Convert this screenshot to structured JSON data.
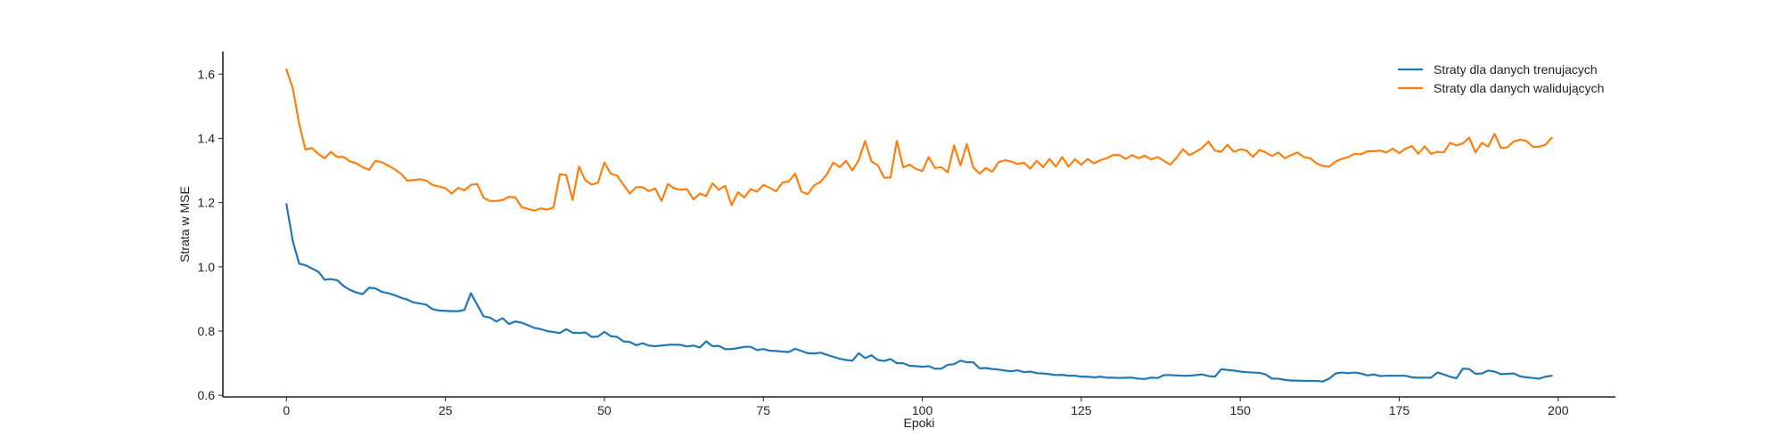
{
  "chart_data": {
    "type": "line",
    "title": "",
    "xlabel": "Epoki",
    "ylabel": "Strata w MSE",
    "xlim": [
      -10,
      209
    ],
    "ylim": [
      0.595,
      1.67
    ],
    "xticks": [
      0,
      25,
      50,
      75,
      100,
      125,
      150,
      175,
      200
    ],
    "yticks": [
      0.6,
      0.8,
      1.0,
      1.2,
      1.4,
      1.6
    ],
    "ytick_labels": [
      "0.6",
      "0.8",
      "1.0",
      "1.2",
      "1.4",
      "1.6"
    ],
    "grid": false,
    "legend_position": "top-right",
    "x": [
      0,
      1,
      2,
      3,
      4,
      5,
      6,
      7,
      8,
      9,
      10,
      11,
      12,
      13,
      14,
      15,
      16,
      17,
      18,
      19,
      20,
      21,
      22,
      23,
      24,
      25,
      26,
      27,
      28,
      29,
      30,
      31,
      32,
      33,
      34,
      35,
      36,
      37,
      38,
      39,
      40,
      41,
      42,
      43,
      44,
      45,
      46,
      47,
      48,
      49,
      50,
      51,
      52,
      53,
      54,
      55,
      56,
      57,
      58,
      59,
      60,
      61,
      62,
      63,
      64,
      65,
      66,
      67,
      68,
      69,
      70,
      71,
      72,
      73,
      74,
      75,
      76,
      77,
      78,
      79,
      80,
      81,
      82,
      83,
      84,
      85,
      86,
      87,
      88,
      89,
      90,
      91,
      92,
      93,
      94,
      95,
      96,
      97,
      98,
      99,
      100,
      101,
      102,
      103,
      104,
      105,
      106,
      107,
      108,
      109,
      110,
      111,
      112,
      113,
      114,
      115,
      116,
      117,
      118,
      119,
      120,
      121,
      122,
      123,
      124,
      125,
      126,
      127,
      128,
      129,
      130,
      131,
      132,
      133,
      134,
      135,
      136,
      137,
      138,
      139,
      140,
      141,
      142,
      143,
      144,
      145,
      146,
      147,
      148,
      149,
      150,
      151,
      152,
      153,
      154,
      155,
      156,
      157,
      158,
      159,
      160,
      161,
      162,
      163,
      164,
      165,
      166,
      167,
      168,
      169,
      170,
      171,
      172,
      173,
      174,
      175,
      176,
      177,
      178,
      179,
      180,
      181,
      182,
      183,
      184,
      185,
      186,
      187,
      188,
      189,
      190,
      191,
      192,
      193,
      194,
      195,
      196,
      197,
      198,
      199
    ],
    "series": [
      {
        "name": "Straty dla danych trenujacych",
        "color": "#1f77b4",
        "values": [
          1.195,
          1.08,
          1.01,
          1.005,
          0.995,
          0.985,
          0.96,
          0.962,
          0.958,
          0.94,
          0.928,
          0.92,
          0.915,
          0.935,
          0.933,
          0.922,
          0.918,
          0.912,
          0.904,
          0.898,
          0.889,
          0.886,
          0.882,
          0.868,
          0.864,
          0.863,
          0.862,
          0.862,
          0.866,
          0.918,
          0.882,
          0.846,
          0.842,
          0.83,
          0.84,
          0.822,
          0.83,
          0.826,
          0.818,
          0.81,
          0.806,
          0.8,
          0.797,
          0.794,
          0.806,
          0.795,
          0.794,
          0.796,
          0.782,
          0.783,
          0.798,
          0.784,
          0.782,
          0.768,
          0.766,
          0.756,
          0.762,
          0.755,
          0.753,
          0.755,
          0.757,
          0.758,
          0.757,
          0.752,
          0.755,
          0.749,
          0.768,
          0.753,
          0.754,
          0.744,
          0.744,
          0.747,
          0.751,
          0.751,
          0.741,
          0.744,
          0.739,
          0.738,
          0.736,
          0.735,
          0.745,
          0.738,
          0.731,
          0.73,
          0.733,
          0.726,
          0.72,
          0.714,
          0.71,
          0.708,
          0.731,
          0.716,
          0.725,
          0.71,
          0.707,
          0.713,
          0.7,
          0.7,
          0.692,
          0.691,
          0.689,
          0.691,
          0.683,
          0.683,
          0.695,
          0.697,
          0.708,
          0.703,
          0.703,
          0.684,
          0.685,
          0.682,
          0.68,
          0.677,
          0.675,
          0.678,
          0.672,
          0.674,
          0.669,
          0.668,
          0.666,
          0.663,
          0.664,
          0.661,
          0.661,
          0.658,
          0.658,
          0.656,
          0.658,
          0.655,
          0.655,
          0.654,
          0.655,
          0.655,
          0.652,
          0.651,
          0.655,
          0.654,
          0.663,
          0.663,
          0.662,
          0.661,
          0.661,
          0.663,
          0.665,
          0.66,
          0.658,
          0.681,
          0.679,
          0.677,
          0.674,
          0.672,
          0.671,
          0.67,
          0.665,
          0.652,
          0.652,
          0.648,
          0.646,
          0.646,
          0.645,
          0.645,
          0.645,
          0.643,
          0.652,
          0.668,
          0.671,
          0.669,
          0.671,
          0.668,
          0.662,
          0.665,
          0.66,
          0.661,
          0.661,
          0.661,
          0.661,
          0.656,
          0.655,
          0.655,
          0.655,
          0.671,
          0.665,
          0.658,
          0.653,
          0.683,
          0.682,
          0.667,
          0.668,
          0.677,
          0.674,
          0.666,
          0.667,
          0.668,
          0.659,
          0.656,
          0.654,
          0.652,
          0.658,
          0.661
        ]
      },
      {
        "name": "Straty dla danych walidujących",
        "color": "#ff7f0e",
        "values": [
          1.615,
          1.555,
          1.445,
          1.365,
          1.37,
          1.352,
          1.338,
          1.358,
          1.342,
          1.342,
          1.328,
          1.322,
          1.31,
          1.302,
          1.33,
          1.326,
          1.315,
          1.304,
          1.29,
          1.268,
          1.27,
          1.273,
          1.268,
          1.255,
          1.25,
          1.245,
          1.228,
          1.246,
          1.238,
          1.255,
          1.258,
          1.215,
          1.205,
          1.205,
          1.208,
          1.218,
          1.216,
          1.186,
          1.18,
          1.175,
          1.182,
          1.178,
          1.185,
          1.288,
          1.286,
          1.208,
          1.312,
          1.27,
          1.256,
          1.262,
          1.325,
          1.29,
          1.284,
          1.256,
          1.228,
          1.248,
          1.248,
          1.236,
          1.244,
          1.205,
          1.258,
          1.244,
          1.24,
          1.242,
          1.21,
          1.228,
          1.22,
          1.26,
          1.24,
          1.252,
          1.192,
          1.232,
          1.216,
          1.242,
          1.234,
          1.255,
          1.246,
          1.235,
          1.262,
          1.266,
          1.29,
          1.234,
          1.226,
          1.254,
          1.265,
          1.288,
          1.325,
          1.31,
          1.33,
          1.3,
          1.332,
          1.392,
          1.328,
          1.316,
          1.278,
          1.278,
          1.392,
          1.31,
          1.318,
          1.305,
          1.298,
          1.342,
          1.308,
          1.31,
          1.294,
          1.378,
          1.316,
          1.382,
          1.31,
          1.29,
          1.308,
          1.296,
          1.326,
          1.332,
          1.328,
          1.32,
          1.324,
          1.306,
          1.33,
          1.31,
          1.336,
          1.312,
          1.342,
          1.312,
          1.335,
          1.318,
          1.336,
          1.322,
          1.332,
          1.338,
          1.348,
          1.348,
          1.336,
          1.348,
          1.338,
          1.346,
          1.334,
          1.342,
          1.33,
          1.318,
          1.34,
          1.366,
          1.348,
          1.358,
          1.37,
          1.39,
          1.362,
          1.358,
          1.38,
          1.358,
          1.366,
          1.362,
          1.342,
          1.364,
          1.356,
          1.345,
          1.356,
          1.338,
          1.348,
          1.356,
          1.342,
          1.338,
          1.322,
          1.314,
          1.312,
          1.328,
          1.336,
          1.342,
          1.352,
          1.35,
          1.36,
          1.36,
          1.362,
          1.356,
          1.368,
          1.354,
          1.368,
          1.376,
          1.352,
          1.375,
          1.352,
          1.358,
          1.356,
          1.386,
          1.378,
          1.384,
          1.402,
          1.356,
          1.386,
          1.374,
          1.414,
          1.37,
          1.372,
          1.39,
          1.396,
          1.392,
          1.374,
          1.374,
          1.38,
          1.402
        ]
      }
    ]
  }
}
